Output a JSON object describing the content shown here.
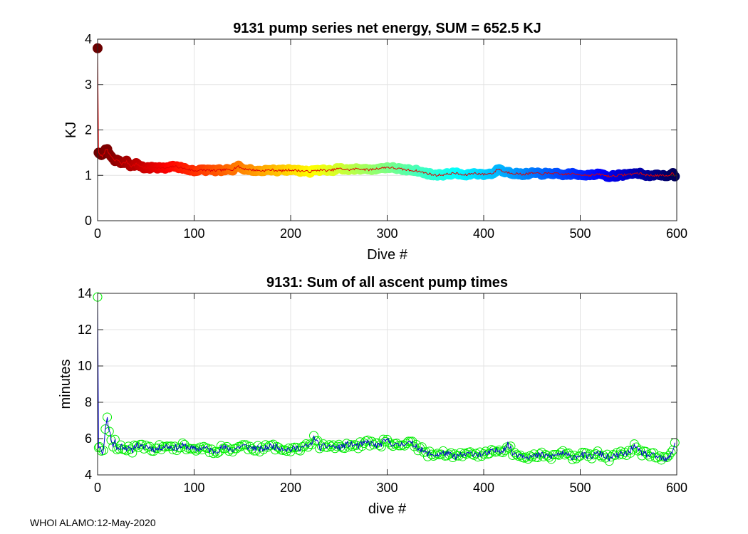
{
  "footer": "WHOI ALAMO:12-May-2020",
  "chart_data": [
    {
      "type": "scatter",
      "title": "9131 pump series net energy, SUM = 652.5 KJ",
      "xlabel": "Dive #",
      "ylabel": "KJ",
      "xlim": [
        0,
        600
      ],
      "ylim": [
        0,
        4
      ],
      "xticks": [
        0,
        100,
        200,
        300,
        400,
        500,
        600
      ],
      "yticks": [
        0,
        1,
        2,
        3,
        4
      ],
      "grid": true,
      "markers": "filled circles colored by dive number (dark red to blue to dark navy, jet colormap)",
      "line_color": "#e00000",
      "marker_colormap": [
        "#6b0000",
        "#ff0000",
        "#ff8000",
        "#ffff00",
        "#80ff80",
        "#00ffff",
        "#0080ff",
        "#0000ff",
        "#00005a"
      ],
      "series": [
        {
          "x": [
            0,
            1,
            3,
            5,
            8,
            10,
            12,
            15,
            18,
            20,
            25,
            30,
            35,
            40,
            45,
            50,
            60,
            70,
            80,
            90,
            100,
            110,
            120,
            130,
            140,
            145,
            150,
            160,
            170,
            180,
            190,
            200,
            210,
            220,
            230,
            240,
            250,
            260,
            270,
            280,
            290,
            300,
            310,
            320,
            330,
            340,
            350,
            360,
            370,
            380,
            390,
            400,
            410,
            415,
            420,
            430,
            440,
            450,
            460,
            470,
            480,
            490,
            500,
            510,
            520,
            530,
            540,
            550,
            560,
            570,
            580,
            590,
            595,
            598
          ],
          "y": [
            3.8,
            1.5,
            1.45,
            1.4,
            1.55,
            1.6,
            1.45,
            1.4,
            1.3,
            1.35,
            1.25,
            1.3,
            1.2,
            1.25,
            1.2,
            1.15,
            1.18,
            1.15,
            1.2,
            1.15,
            1.1,
            1.12,
            1.1,
            1.12,
            1.13,
            1.2,
            1.15,
            1.12,
            1.1,
            1.12,
            1.1,
            1.12,
            1.1,
            1.08,
            1.12,
            1.1,
            1.15,
            1.12,
            1.15,
            1.12,
            1.15,
            1.18,
            1.15,
            1.12,
            1.1,
            1.05,
            1.0,
            1.02,
            1.05,
            1.0,
            1.05,
            1.02,
            1.05,
            1.15,
            1.08,
            1.05,
            1.02,
            1.05,
            1.03,
            1.05,
            1.02,
            1.03,
            1.02,
            1.0,
            1.02,
            0.98,
            1.0,
            1.02,
            1.05,
            1.0,
            1.0,
            0.98,
            1.05,
            1.0
          ]
        }
      ]
    },
    {
      "type": "line",
      "title": "9131: Sum of all ascent pump times",
      "xlabel": "dive #",
      "ylabel": "minutes",
      "xlim": [
        0,
        600
      ],
      "ylim": [
        4,
        14
      ],
      "xticks": [
        0,
        100,
        200,
        300,
        400,
        500,
        600
      ],
      "yticks": [
        4,
        6,
        8,
        10,
        12,
        14
      ],
      "grid": true,
      "line_color": "#0000cc",
      "marker_color": "#00ee00",
      "markers": "open circles",
      "series": [
        {
          "x": [
            0,
            1,
            3,
            5,
            7,
            9,
            10,
            12,
            14,
            16,
            18,
            20,
            25,
            30,
            35,
            40,
            45,
            50,
            60,
            70,
            80,
            90,
            100,
            110,
            120,
            130,
            140,
            150,
            160,
            170,
            180,
            190,
            200,
            210,
            220,
            225,
            230,
            240,
            250,
            260,
            270,
            280,
            290,
            300,
            310,
            320,
            330,
            340,
            350,
            360,
            370,
            380,
            390,
            400,
            410,
            420,
            425,
            430,
            440,
            450,
            460,
            470,
            480,
            490,
            500,
            510,
            520,
            530,
            540,
            550,
            555,
            560,
            570,
            580,
            590,
            595,
            598
          ],
          "y": [
            13.8,
            5.5,
            5.6,
            5.2,
            5.8,
            7.0,
            7.1,
            6.5,
            6.0,
            5.6,
            5.9,
            5.4,
            5.6,
            5.5,
            5.3,
            5.7,
            5.5,
            5.6,
            5.4,
            5.6,
            5.5,
            5.6,
            5.4,
            5.5,
            5.3,
            5.5,
            5.4,
            5.6,
            5.5,
            5.4,
            5.6,
            5.5,
            5.4,
            5.5,
            5.6,
            6.1,
            5.5,
            5.6,
            5.5,
            5.7,
            5.6,
            5.8,
            5.6,
            5.9,
            5.6,
            5.8,
            5.6,
            5.2,
            5.1,
            5.2,
            5.0,
            5.1,
            5.2,
            5.1,
            5.3,
            5.4,
            5.7,
            5.2,
            5.1,
            5.0,
            5.1,
            5.0,
            5.2,
            5.0,
            5.1,
            5.0,
            5.2,
            4.9,
            5.1,
            5.2,
            5.6,
            5.3,
            5.1,
            5.0,
            4.8,
            5.2,
            5.8
          ]
        }
      ]
    }
  ]
}
